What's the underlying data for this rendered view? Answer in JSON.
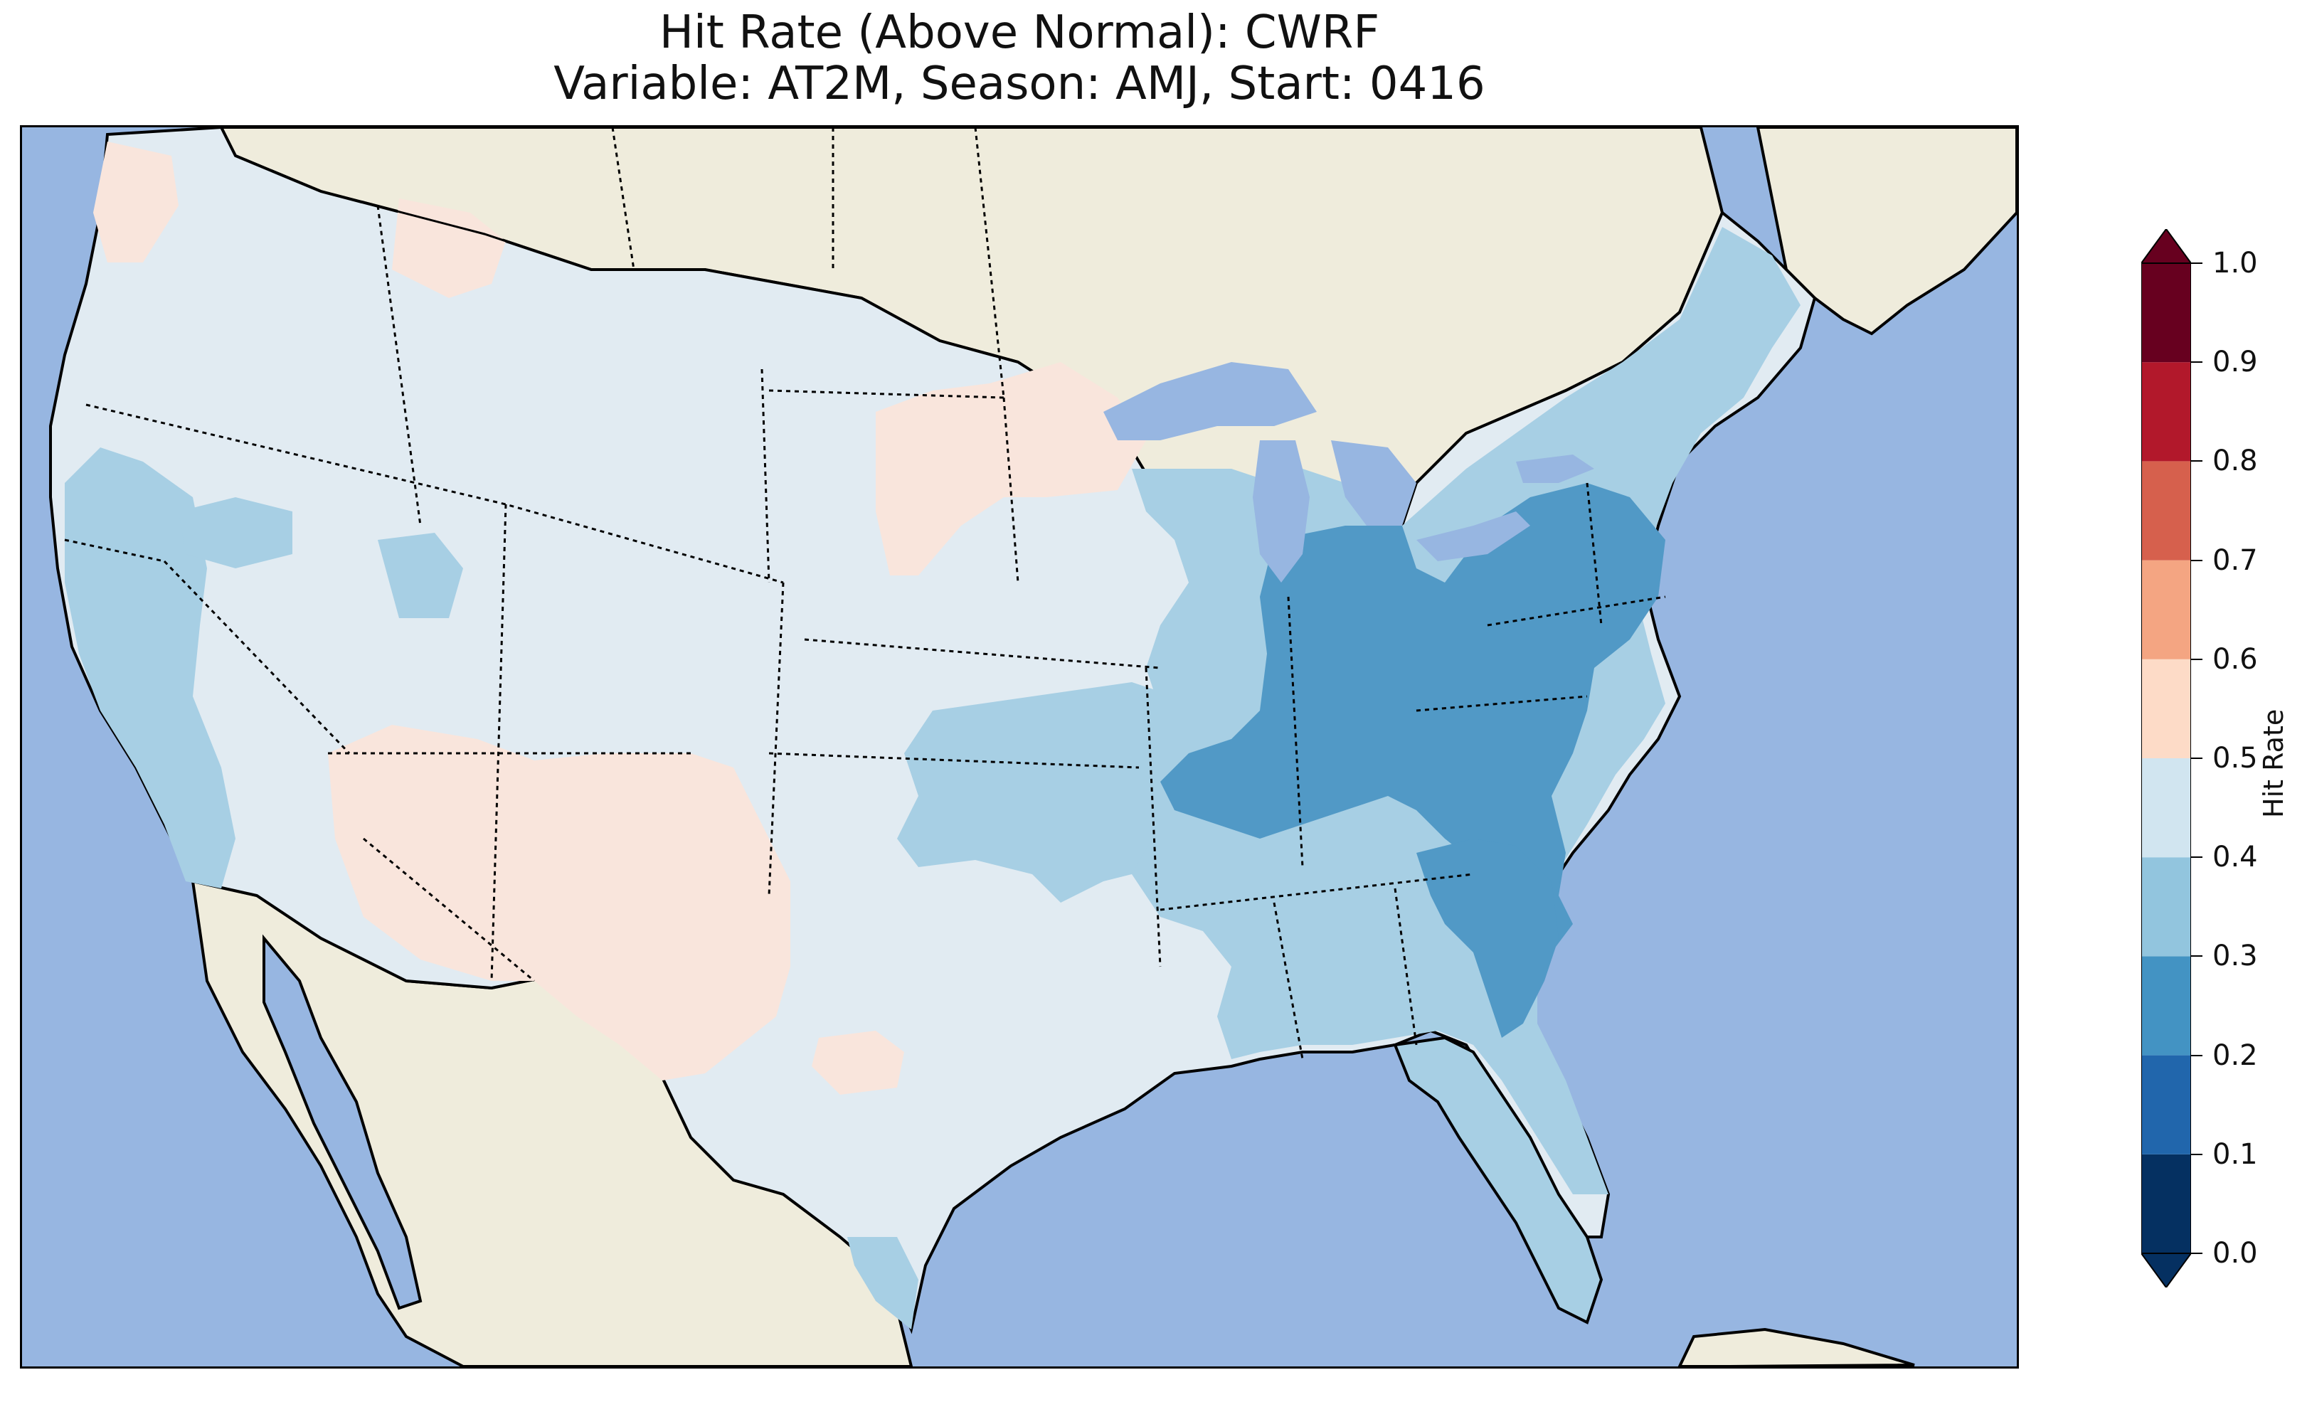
{
  "figure": {
    "title_line1": "Hit Rate (Above Normal): CWRF",
    "title_line2": "Variable: AT2M, Season: AMJ, Start: 0416"
  },
  "map": {
    "ocean_color": "#97b6e1",
    "land_color": "#efecdc",
    "legend_classes": [
      {
        "range": "0.5-0.6",
        "color": "#f9e5dc"
      },
      {
        "range": "0.4-0.5",
        "color": "#e1ebf2"
      },
      {
        "range": "0.3-0.4",
        "color": "#a7cfe4"
      },
      {
        "range": "0.2-0.3",
        "color": "#5199c6"
      }
    ]
  },
  "colorbar": {
    "label": "Hit Rate",
    "ticks": [
      "0.0",
      "0.1",
      "0.2",
      "0.3",
      "0.4",
      "0.5",
      "0.6",
      "0.7",
      "0.8",
      "0.9",
      "1.0"
    ],
    "colors": [
      "#053061",
      "#2166ac",
      "#4393c3",
      "#92c5de",
      "#d1e5f0",
      "#fddbc7",
      "#f4a582",
      "#d6604d",
      "#b2182b",
      "#67001f"
    ]
  }
}
